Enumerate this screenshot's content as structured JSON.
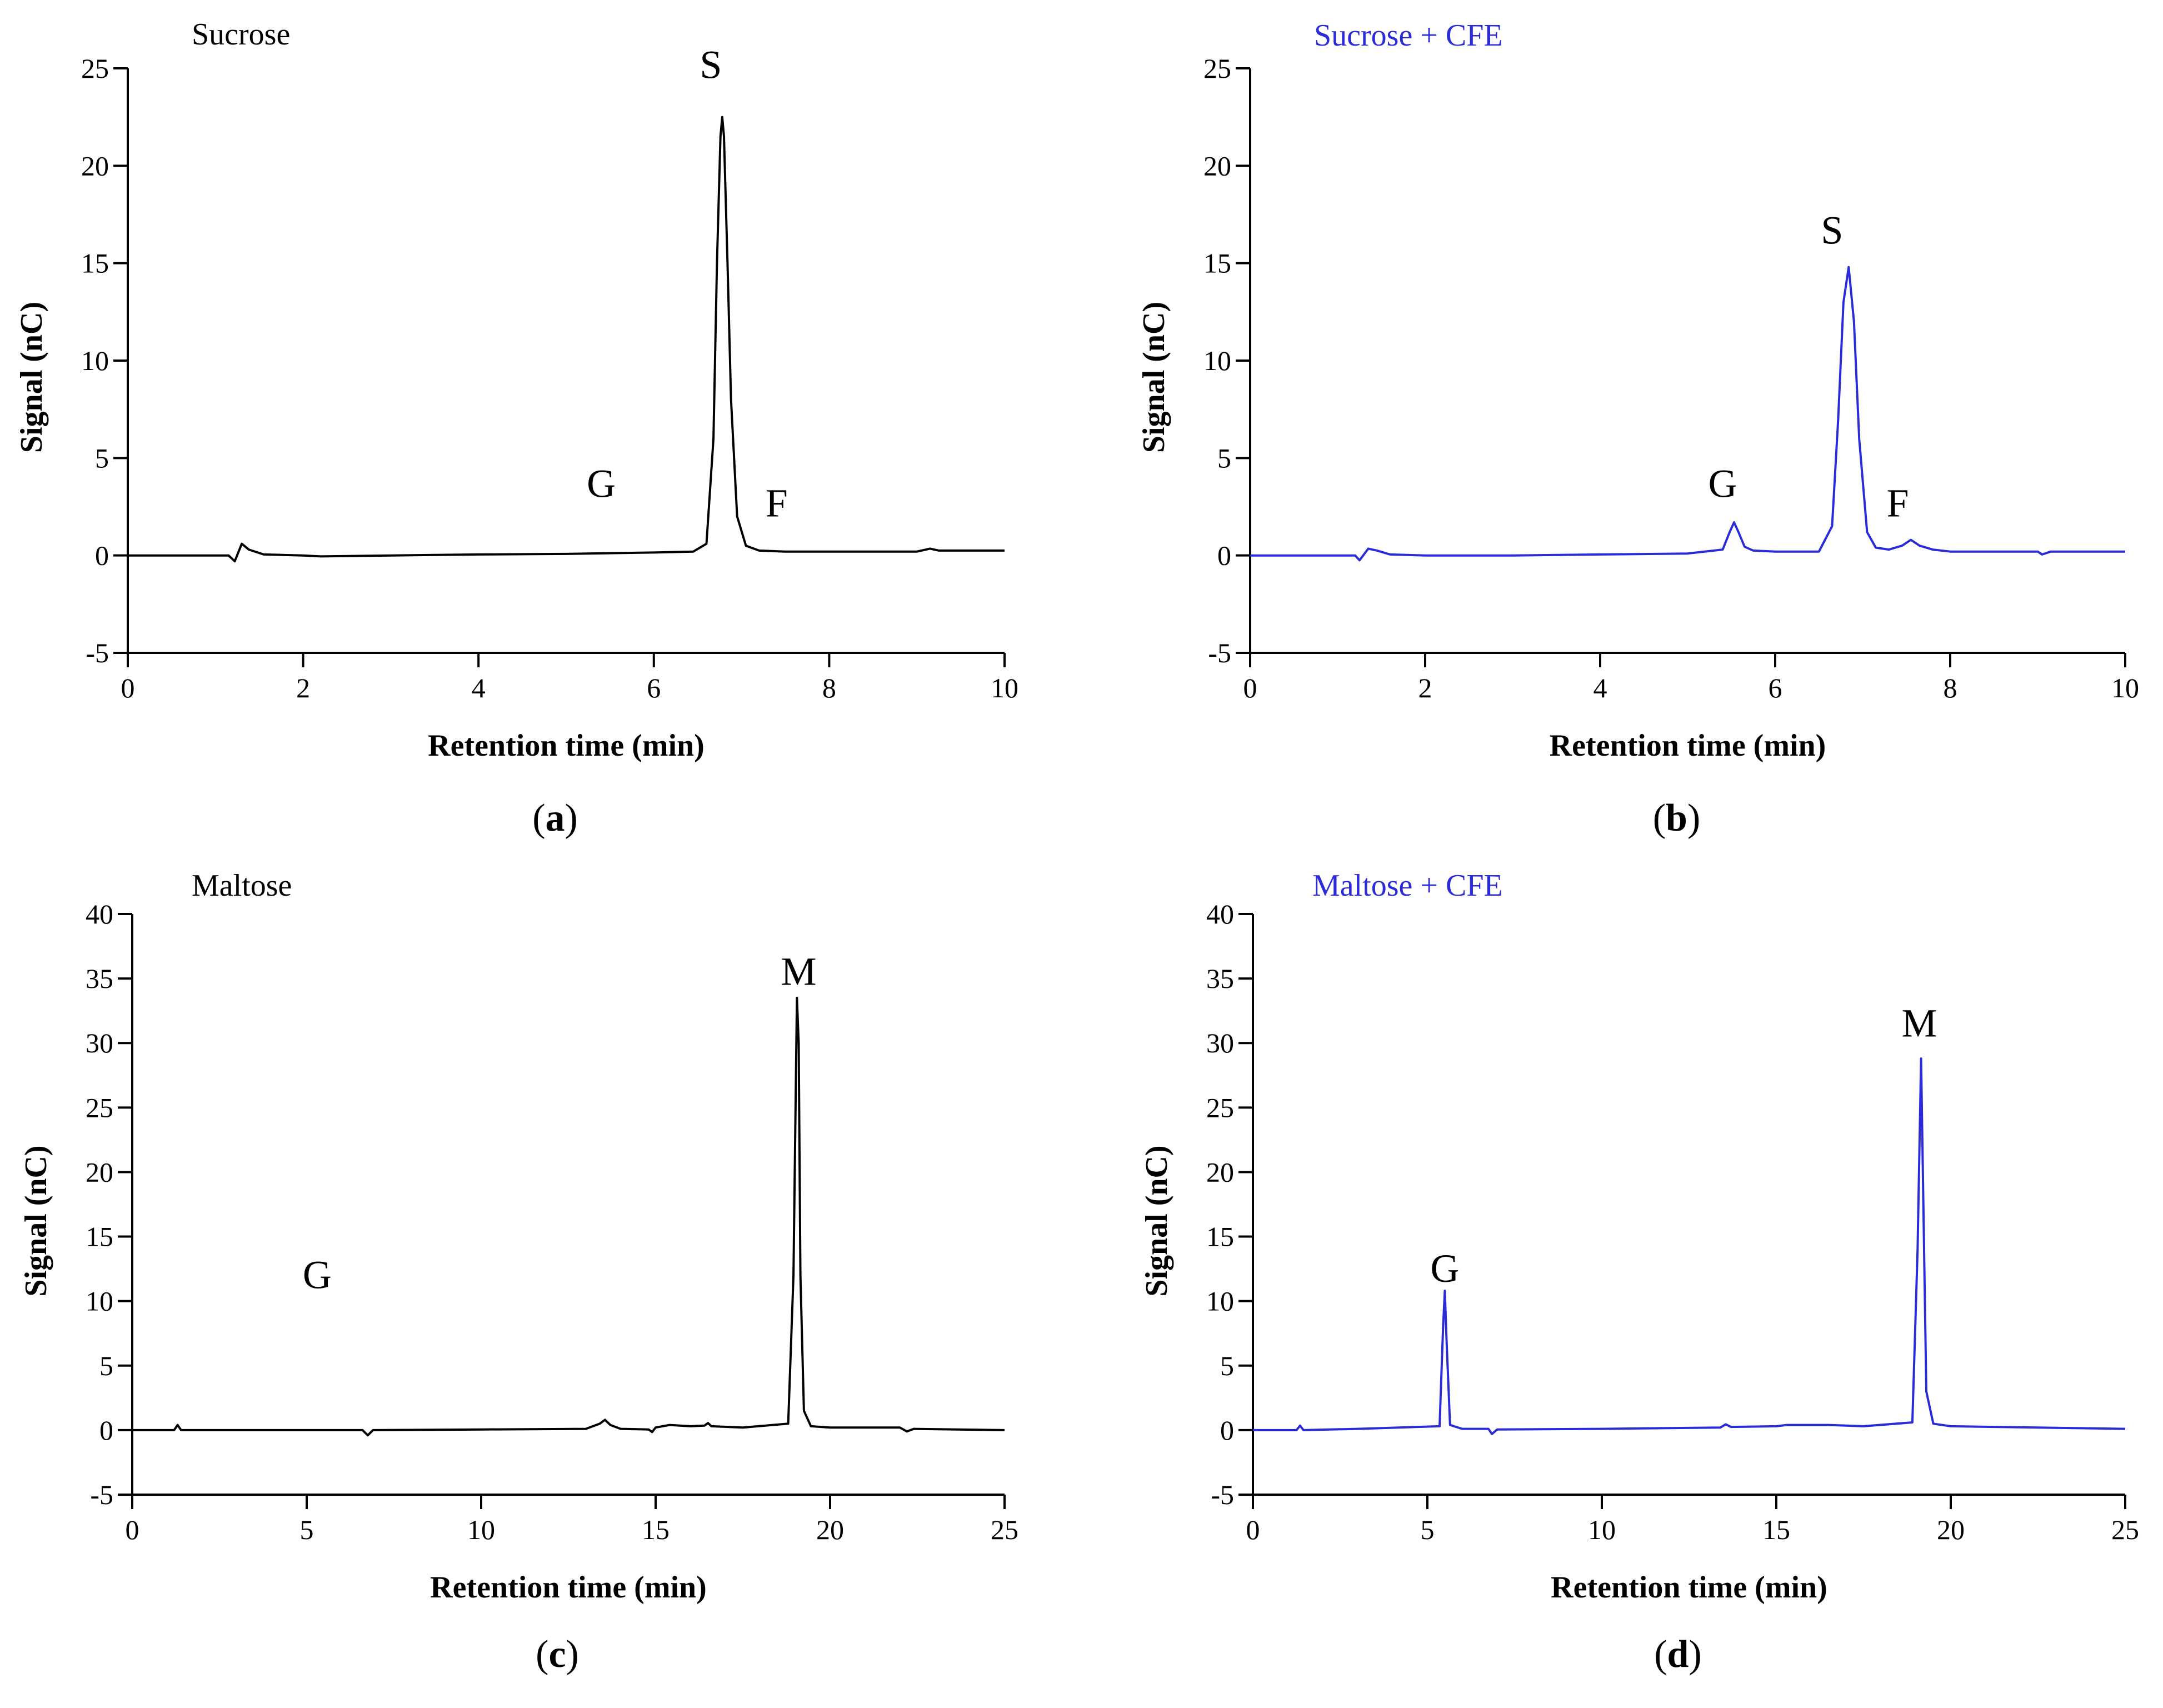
{
  "colors": {
    "black_trace": "#000000",
    "blue_trace": "#2b2bd9"
  },
  "chart_data": [
    {
      "id": "a",
      "type": "line",
      "title": "Sucrose",
      "title_color": "#000000",
      "caption_letter": "a",
      "xlabel": "Retention time (min)",
      "ylabel": "Signal (nC)",
      "xlim": [
        0,
        10
      ],
      "ylim": [
        -5,
        25
      ],
      "xticks": [
        0,
        2,
        4,
        6,
        8,
        10
      ],
      "yticks": [
        -5,
        0,
        5,
        10,
        15,
        20,
        25
      ],
      "grid": false,
      "series": [
        {
          "name": "Sucrose",
          "color": "#000000",
          "x": [
            0,
            1.15,
            1.22,
            1.3,
            1.38,
            1.55,
            2.0,
            2.2,
            3.0,
            4.0,
            5.0,
            6.0,
            6.45,
            6.6,
            6.68,
            6.72,
            6.76,
            6.78,
            6.8,
            6.84,
            6.88,
            6.95,
            7.05,
            7.2,
            7.5,
            8.0,
            9.0,
            9.15,
            9.25,
            10.0
          ],
          "y": [
            0,
            0,
            -0.3,
            0.6,
            0.3,
            0.05,
            0,
            -0.05,
            0,
            0.05,
            0.08,
            0.15,
            0.2,
            0.6,
            6,
            15,
            21.5,
            22.5,
            21.5,
            15,
            8,
            2,
            0.5,
            0.25,
            0.2,
            0.2,
            0.2,
            0.35,
            0.25,
            0.25
          ]
        }
      ],
      "annotations": [
        {
          "text": "S",
          "x": 6.65,
          "y": 24.5
        },
        {
          "text": "G",
          "x": 5.4,
          "y": 3.0
        },
        {
          "text": "F",
          "x": 7.4,
          "y": 2.0
        }
      ]
    },
    {
      "id": "b",
      "type": "line",
      "title": "Sucrose + CFE",
      "title_color": "#2b2bd9",
      "caption_letter": "b",
      "xlabel": "Retention time (min)",
      "ylabel": "Signal (nC)",
      "xlim": [
        0,
        10
      ],
      "ylim": [
        -5,
        25
      ],
      "xticks": [
        0,
        2,
        4,
        6,
        8,
        10
      ],
      "yticks": [
        -5,
        0,
        5,
        10,
        15,
        20,
        25
      ],
      "grid": false,
      "series": [
        {
          "name": "Sucrose + CFE",
          "color": "#2b2bd9",
          "x": [
            0,
            1.2,
            1.25,
            1.35,
            1.45,
            1.6,
            2.0,
            3.0,
            4.0,
            5.0,
            5.4,
            5.48,
            5.53,
            5.58,
            5.65,
            5.75,
            6.0,
            6.5,
            6.65,
            6.72,
            6.78,
            6.84,
            6.9,
            6.96,
            7.05,
            7.15,
            7.3,
            7.45,
            7.55,
            7.65,
            7.8,
            8.0,
            9.0,
            9.05,
            9.15,
            10.0
          ],
          "y": [
            0,
            0,
            -0.25,
            0.35,
            0.25,
            0.05,
            0,
            0,
            0.05,
            0.1,
            0.3,
            1.2,
            1.7,
            1.2,
            0.45,
            0.25,
            0.2,
            0.2,
            1.5,
            7,
            13,
            14.8,
            12,
            6,
            1.2,
            0.4,
            0.3,
            0.5,
            0.8,
            0.5,
            0.3,
            0.2,
            0.2,
            0.05,
            0.2,
            0.2
          ]
        }
      ],
      "annotations": [
        {
          "text": "S",
          "x": 6.65,
          "y": 16.0
        },
        {
          "text": "G",
          "x": 5.4,
          "y": 3.0
        },
        {
          "text": "F",
          "x": 7.4,
          "y": 2.0
        }
      ]
    },
    {
      "id": "c",
      "type": "line",
      "title": "Maltose",
      "title_color": "#000000",
      "caption_letter": "c",
      "xlabel": "Retention time (min)",
      "ylabel": "Signal (nC)",
      "xlim": [
        0,
        25
      ],
      "ylim": [
        -5,
        40
      ],
      "xticks": [
        0,
        5,
        10,
        15,
        20,
        25
      ],
      "yticks": [
        -5,
        0,
        5,
        10,
        15,
        20,
        25,
        30,
        35,
        40
      ],
      "grid": false,
      "series": [
        {
          "name": "Maltose",
          "color": "#000000",
          "x": [
            0,
            1.2,
            1.3,
            1.4,
            3.0,
            6.6,
            6.75,
            6.9,
            10.0,
            13.0,
            13.4,
            13.55,
            13.7,
            14.0,
            14.8,
            14.9,
            15.0,
            15.4,
            16.0,
            16.4,
            16.5,
            16.6,
            17.5,
            18.8,
            18.95,
            19.05,
            19.1,
            19.15,
            19.25,
            19.45,
            20.0,
            22.0,
            22.2,
            22.4,
            25.0
          ],
          "y": [
            0,
            0,
            0.4,
            0,
            0,
            0,
            -0.4,
            0,
            0.05,
            0.1,
            0.5,
            0.8,
            0.4,
            0.1,
            0.05,
            -0.15,
            0.2,
            0.4,
            0.3,
            0.35,
            0.55,
            0.3,
            0.2,
            0.5,
            12,
            33.5,
            30,
            12,
            1.5,
            0.3,
            0.2,
            0.2,
            -0.1,
            0.1,
            0
          ]
        }
      ],
      "annotations": [
        {
          "text": "M",
          "x": 19.1,
          "y": 34.5
        },
        {
          "text": "G",
          "x": 5.3,
          "y": 11.0
        }
      ]
    },
    {
      "id": "d",
      "type": "line",
      "title": "Maltose + CFE",
      "title_color": "#2b2bd9",
      "caption_letter": "d",
      "xlabel": "Retention time (min)",
      "ylabel": "Signal (nC)",
      "xlim": [
        0,
        25
      ],
      "ylim": [
        -5,
        40
      ],
      "xticks": [
        0,
        5,
        10,
        15,
        20,
        25
      ],
      "yticks": [
        -5,
        0,
        5,
        10,
        15,
        20,
        25,
        30,
        35,
        40
      ],
      "grid": false,
      "series": [
        {
          "name": "Maltose + CFE",
          "color": "#2b2bd9",
          "x": [
            0,
            1.25,
            1.35,
            1.45,
            3.0,
            5.35,
            5.45,
            5.5,
            5.55,
            5.65,
            6.0,
            6.75,
            6.85,
            7.0,
            10.0,
            13.4,
            13.55,
            13.7,
            15.0,
            15.3,
            16.5,
            17.5,
            18.9,
            19.05,
            19.15,
            19.2,
            19.3,
            19.5,
            20.0,
            25.0
          ],
          "y": [
            0,
            0,
            0.35,
            0,
            0.1,
            0.3,
            8,
            10.8,
            7,
            0.4,
            0.1,
            0.1,
            -0.3,
            0.05,
            0.1,
            0.2,
            0.45,
            0.25,
            0.3,
            0.4,
            0.4,
            0.3,
            0.6,
            14,
            28.8,
            20,
            3,
            0.5,
            0.3,
            0.1
          ]
        }
      ],
      "annotations": [
        {
          "text": "M",
          "x": 19.1,
          "y": 30.5
        },
        {
          "text": "G",
          "x": 5.5,
          "y": 11.5
        }
      ]
    }
  ]
}
